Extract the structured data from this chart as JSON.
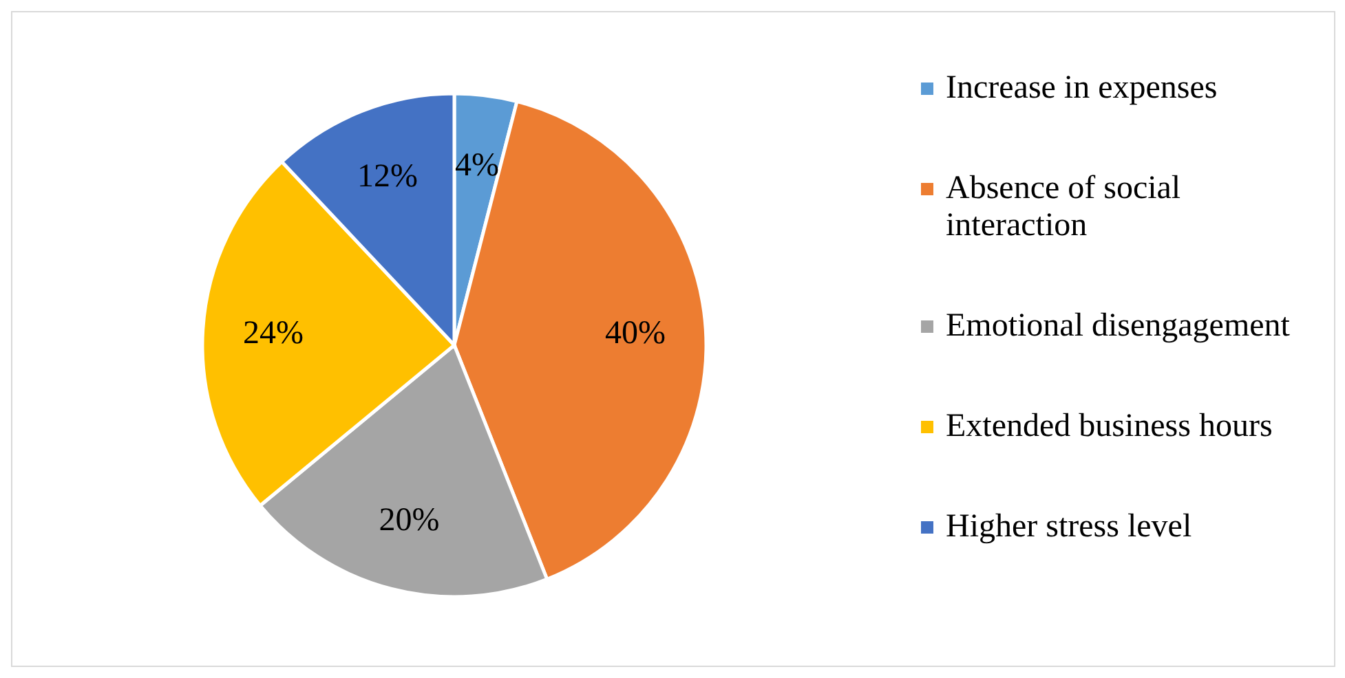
{
  "chart_data": {
    "type": "pie",
    "categories": [
      "Increase in expenses",
      "Absence of social interaction",
      "Emotional disengagement",
      "Extended business hours",
      "Higher stress level"
    ],
    "values": [
      4,
      40,
      20,
      24,
      12
    ],
    "colors": [
      "#5b9bd5",
      "#ed7d31",
      "#a5a5a5",
      "#ffc000",
      "#4472c4"
    ],
    "value_labels": [
      "4%",
      "40%",
      "20%",
      "24%",
      "12%"
    ],
    "legend": "right"
  }
}
